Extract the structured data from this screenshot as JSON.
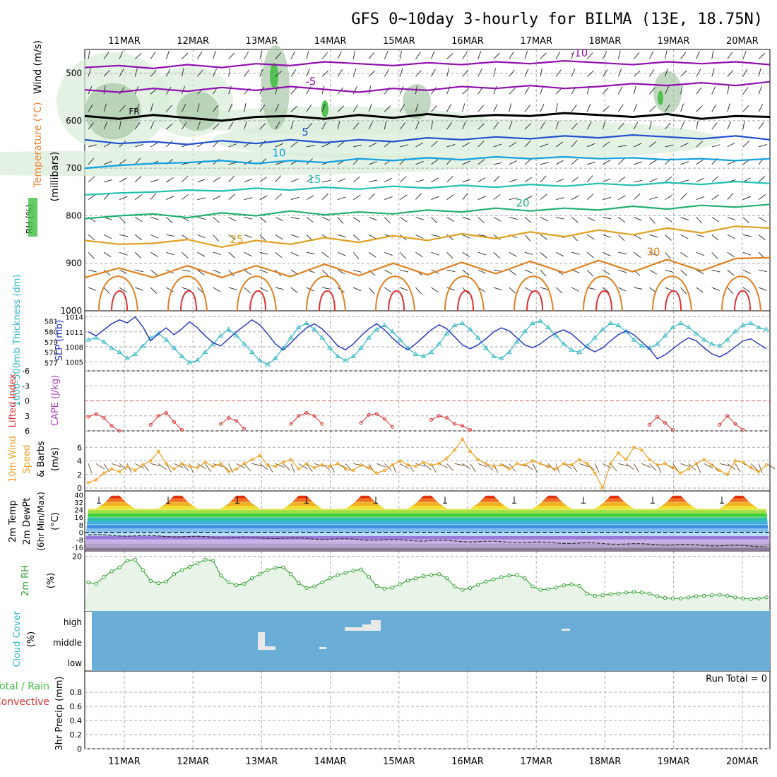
{
  "title": "GFS 0~10day 3-hourly for BILMA (13E, 18.75N)",
  "dates": [
    "11MAR",
    "12MAR",
    "13MAR",
    "14MAR",
    "15MAR",
    "16MAR",
    "17MAR",
    "18MAR",
    "19MAR",
    "20MAR"
  ],
  "colors": {
    "temperature": "#f08030",
    "rh": "#30c030",
    "thickness": "#30b8c8",
    "slp": "#2030c0",
    "cape": "#b040c0",
    "lifted": "#e03030",
    "wind10": "#f0a020",
    "rh2m": "#30a030",
    "cloud": "#6aaed8",
    "precip": "#40c040",
    "convective": "#e03030"
  },
  "chart_data": [
    {
      "type": "contour",
      "name": "upper-air",
      "ylabel_parts": [
        "Wind (m/s)",
        "Temperature (°C)",
        "RH (%)",
        "(millibars)"
      ],
      "y_ticks": [
        500,
        600,
        700,
        800,
        900,
        1000
      ],
      "ylim": [
        450,
        1000
      ],
      "temperature_labels": [
        "-10",
        "-5",
        "FR",
        "5",
        "10",
        "15",
        "20",
        "25",
        "30"
      ],
      "isotherms": [
        {
          "label": "-10",
          "color": "#9010b0",
          "pressure": [
            488,
            484,
            490,
            482,
            488,
            480,
            484,
            476,
            480,
            484,
            478,
            482,
            476,
            480,
            474,
            478,
            482,
            476,
            480,
            476,
            482
          ]
        },
        {
          "label": "-5",
          "color": "#9010b0",
          "pressure": [
            535,
            540,
            532,
            538,
            530,
            536,
            528,
            534,
            540,
            532,
            536,
            528,
            532,
            526,
            532,
            528,
            522,
            526,
            520,
            526,
            518
          ]
        },
        {
          "label": "FR",
          "color": "#000000",
          "pressure": [
            590,
            596,
            588,
            594,
            600,
            592,
            590,
            596,
            588,
            594,
            586,
            592,
            588,
            590,
            584,
            588,
            592,
            586,
            596,
            590,
            592
          ]
        },
        {
          "label": "5",
          "color": "#2050d0",
          "pressure": [
            640,
            648,
            644,
            650,
            642,
            648,
            640,
            646,
            640,
            644,
            636,
            640,
            634,
            638,
            632,
            636,
            630,
            634,
            638,
            632,
            640
          ]
        },
        {
          "label": "10",
          "color": "#10a0e0",
          "pressure": [
            700,
            694,
            690,
            688,
            684,
            690,
            684,
            688,
            680,
            684,
            678,
            682,
            676,
            680,
            676,
            680,
            678,
            682,
            680,
            684,
            680
          ]
        },
        {
          "label": "15",
          "color": "#20c0b0",
          "pressure": [
            756,
            752,
            750,
            746,
            748,
            742,
            746,
            740,
            744,
            738,
            742,
            736,
            740,
            734,
            738,
            732,
            736,
            730,
            734,
            728,
            732
          ]
        },
        {
          "label": "20",
          "color": "#20b070",
          "pressure": [
            806,
            800,
            796,
            804,
            794,
            800,
            790,
            798,
            792,
            796,
            788,
            792,
            784,
            790,
            784,
            788,
            780,
            786,
            778,
            782,
            776
          ]
        },
        {
          "label": "25",
          "color": "#e0a020",
          "pressure": [
            852,
            860,
            858,
            850,
            866,
            852,
            860,
            846,
            856,
            842,
            852,
            838,
            848,
            834,
            844,
            830,
            840,
            826,
            836,
            822,
            826
          ]
        },
        {
          "label": "30",
          "color": "#e08020",
          "pressure": [
            930,
            910,
            930,
            905,
            930,
            905,
            928,
            902,
            926,
            900,
            924,
            898,
            922,
            896,
            920,
            894,
            918,
            892,
            916,
            890,
            888
          ]
        }
      ]
    },
    {
      "type": "line",
      "name": "thickness-slp",
      "ylabel_left": "1000-500mb Thickness (dm)",
      "ylabel_right": "SLP (mb)",
      "thickness_ticks": [
        577,
        578,
        579,
        580,
        581
      ],
      "slp_ticks": [
        1005,
        1008,
        1011,
        1014
      ],
      "series": [
        {
          "name": "thickness",
          "axis": "left",
          "values": [
            579.2,
            579.4,
            579.0,
            578.4,
            578.0,
            577.4,
            577.8,
            578.6,
            579.4,
            579.8,
            579.2,
            578.4,
            577.6,
            577.0,
            577.2,
            578.0,
            578.8,
            579.6,
            580.2,
            579.6,
            578.8,
            578.0,
            577.2,
            576.8,
            577.4,
            578.4,
            579.4,
            580.4,
            580.8,
            580.2,
            579.4,
            578.4,
            577.6,
            577.2,
            577.6,
            578.4,
            579.4,
            580.2,
            580.6,
            580.0,
            579.2,
            578.4,
            577.8,
            577.6,
            578.0,
            578.8,
            579.8,
            580.6,
            580.8,
            580.2,
            579.4,
            578.4,
            577.6,
            577.4,
            578.0,
            579.0,
            580.0,
            580.8,
            581.0,
            580.4,
            579.6,
            578.8,
            578.2,
            578.0,
            578.6,
            579.4,
            580.2,
            580.8,
            580.6,
            580.0,
            579.2,
            578.6,
            578.4,
            578.8,
            579.6,
            580.4,
            580.8,
            580.4,
            579.8,
            579.2,
            578.8,
            578.6,
            579.2,
            580.0,
            580.6,
            580.8,
            580.4,
            580.2
          ]
        },
        {
          "name": "slp",
          "axis": "right",
          "values": [
            1011.0,
            1010.2,
            1011.4,
            1012.6,
            1013.4,
            1012.8,
            1014.0,
            1012.0,
            1009.2,
            1010.6,
            1011.8,
            1010.4,
            1011.6,
            1013.0,
            1011.8,
            1010.2,
            1008.8,
            1008.2,
            1009.6,
            1011.0,
            1012.2,
            1013.4,
            1012.4,
            1010.6,
            1008.6,
            1007.4,
            1008.8,
            1010.4,
            1011.8,
            1012.6,
            1011.6,
            1010.0,
            1008.2,
            1007.4,
            1008.6,
            1010.2,
            1011.6,
            1012.6,
            1011.4,
            1009.8,
            1008.4,
            1007.4,
            1008.6,
            1010.0,
            1011.4,
            1012.4,
            1011.6,
            1010.0,
            1008.4,
            1007.6,
            1008.4,
            1009.6,
            1011.0,
            1011.8,
            1011.2,
            1009.8,
            1008.4,
            1007.8,
            1008.6,
            1009.8,
            1010.8,
            1011.4,
            1010.6,
            1009.2,
            1007.8,
            1007.0,
            1007.8,
            1009.2,
            1010.4,
            1011.2,
            1010.4,
            1009.0,
            1007.6,
            1005.6,
            1006.4,
            1007.6,
            1008.8,
            1009.8,
            1009.2,
            1007.8,
            1006.6,
            1006.0,
            1006.8,
            1008.0,
            1009.2,
            1009.6,
            1008.6,
            1007.6
          ]
        }
      ]
    },
    {
      "type": "line",
      "name": "lifted-index",
      "ylabel_left": "Lifted Index",
      "ylabel_right": "CAPE (J/kg)",
      "y_ticks": [
        -6,
        -3,
        0,
        3,
        6
      ],
      "ylim": [
        6,
        -6
      ],
      "segments": [
        {
          "start": 0,
          "values": [
            3.2,
            2.6,
            3.4,
            5.0,
            6.0
          ]
        },
        {
          "start": 8,
          "values": [
            4.8,
            3.0,
            2.4,
            4.2,
            5.8
          ]
        },
        {
          "start": 17,
          "values": [
            4.6,
            3.4,
            4.0,
            5.6
          ]
        },
        {
          "start": 26,
          "values": [
            4.6,
            3.0,
            2.4,
            3.0,
            4.6
          ]
        },
        {
          "start": 35,
          "values": [
            4.4,
            2.8,
            2.6,
            3.6,
            5.2
          ]
        },
        {
          "start": 44,
          "values": [
            3.8,
            3.0,
            3.4,
            4.6,
            5.0,
            5.8
          ]
        },
        {
          "start": 72,
          "values": [
            4.8,
            3.2,
            4.4,
            5.8
          ]
        },
        {
          "start": 81,
          "values": [
            4.8,
            3.0,
            4.6,
            5.8
          ]
        }
      ]
    },
    {
      "type": "line",
      "name": "wind10",
      "ylabel_parts": [
        "10m Wind",
        "Speed",
        "& Barbs",
        "(m/s)"
      ],
      "y_ticks": [
        0,
        2,
        4,
        6
      ],
      "ylim": [
        0,
        8
      ],
      "values": [
        0.8,
        1.2,
        2.2,
        2.8,
        2.4,
        3.2,
        2.6,
        3.4,
        4.0,
        5.4,
        3.6,
        2.8,
        3.6,
        3.2,
        3.0,
        3.8,
        3.2,
        3.6,
        2.4,
        2.8,
        3.6,
        4.2,
        4.8,
        3.4,
        3.2,
        3.8,
        4.2,
        2.8,
        3.6,
        3.0,
        3.4,
        3.2,
        3.6,
        2.8,
        2.6,
        3.4,
        3.0,
        2.2,
        2.6,
        3.4,
        4.0,
        3.4,
        3.2,
        3.8,
        3.4,
        3.6,
        4.4,
        5.6,
        7.2,
        5.4,
        4.2,
        3.6,
        3.2,
        3.4,
        2.8,
        3.6,
        3.4,
        4.0,
        3.6,
        3.2,
        2.8,
        3.6,
        3.4,
        4.2,
        3.6,
        2.2,
        0.0,
        3.6,
        5.2,
        4.2,
        6.0,
        5.6,
        4.2,
        3.4,
        3.6,
        3.0,
        2.2,
        2.8,
        3.6,
        4.2,
        3.4,
        2.6,
        2.0,
        4.0,
        3.8,
        3.0,
        2.4,
        3.4
      ]
    },
    {
      "type": "area",
      "name": "temp2m",
      "ylabel_parts": [
        "2m Temp",
        "2m DewPt",
        "(6hr Min/Max)",
        "(°C)"
      ],
      "y_ticks": [
        -16,
        -8,
        0,
        8,
        16,
        24,
        32,
        40
      ],
      "ylim": [
        -20,
        44
      ],
      "temp_min": 25,
      "temp_max": 40,
      "dewpt_start": -3,
      "dewpt_end": -15
    },
    {
      "type": "area",
      "name": "rh2m",
      "ylabel": "2m RH",
      "ylabel_unit": "(%)",
      "y_ticks": [
        20
      ],
      "ylim": [
        0,
        22
      ],
      "values": [
        10.5,
        10.0,
        12.5,
        14.5,
        16.0,
        18.5,
        18.8,
        15.0,
        11.0,
        10.2,
        10.8,
        13.5,
        15.0,
        16.2,
        17.5,
        18.8,
        18.5,
        13.0,
        10.5,
        9.5,
        10.0,
        12.0,
        13.5,
        15.0,
        15.8,
        16.0,
        13.5,
        10.2,
        8.5,
        9.0,
        10.5,
        12.0,
        13.2,
        14.0,
        14.8,
        15.2,
        12.5,
        9.2,
        8.2,
        8.6,
        9.8,
        11.2,
        12.0,
        12.8,
        13.2,
        13.5,
        12.0,
        9.0,
        7.8,
        8.4,
        9.6,
        10.8,
        11.6,
        12.4,
        13.0,
        13.2,
        12.0,
        9.0,
        7.8,
        8.0,
        8.6,
        9.4,
        9.8,
        9.2,
        6.4,
        5.6,
        5.8,
        6.2,
        6.4,
        6.8,
        7.0,
        6.8,
        6.4,
        5.4,
        4.8,
        4.6,
        4.6,
        5.0,
        5.4,
        5.6,
        5.8,
        6.0,
        5.6,
        5.0,
        4.6,
        4.4,
        4.6,
        5.0
      ]
    },
    {
      "type": "bar",
      "name": "cloud-cover",
      "ylabel": "Cloud Cover",
      "ylabel_unit": "(%)",
      "levels": [
        "high",
        "middle",
        "low"
      ]
    },
    {
      "type": "bar",
      "name": "precip",
      "ylabel_parts": [
        "Total / Rain",
        "Convective",
        "3hr Precip (mm)"
      ],
      "y_ticks": [
        "0",
        "0.2",
        "0.4",
        "0.6",
        "0.8"
      ],
      "ylim": [
        0,
        1
      ],
      "annotation": "Run Total = 0"
    }
  ]
}
